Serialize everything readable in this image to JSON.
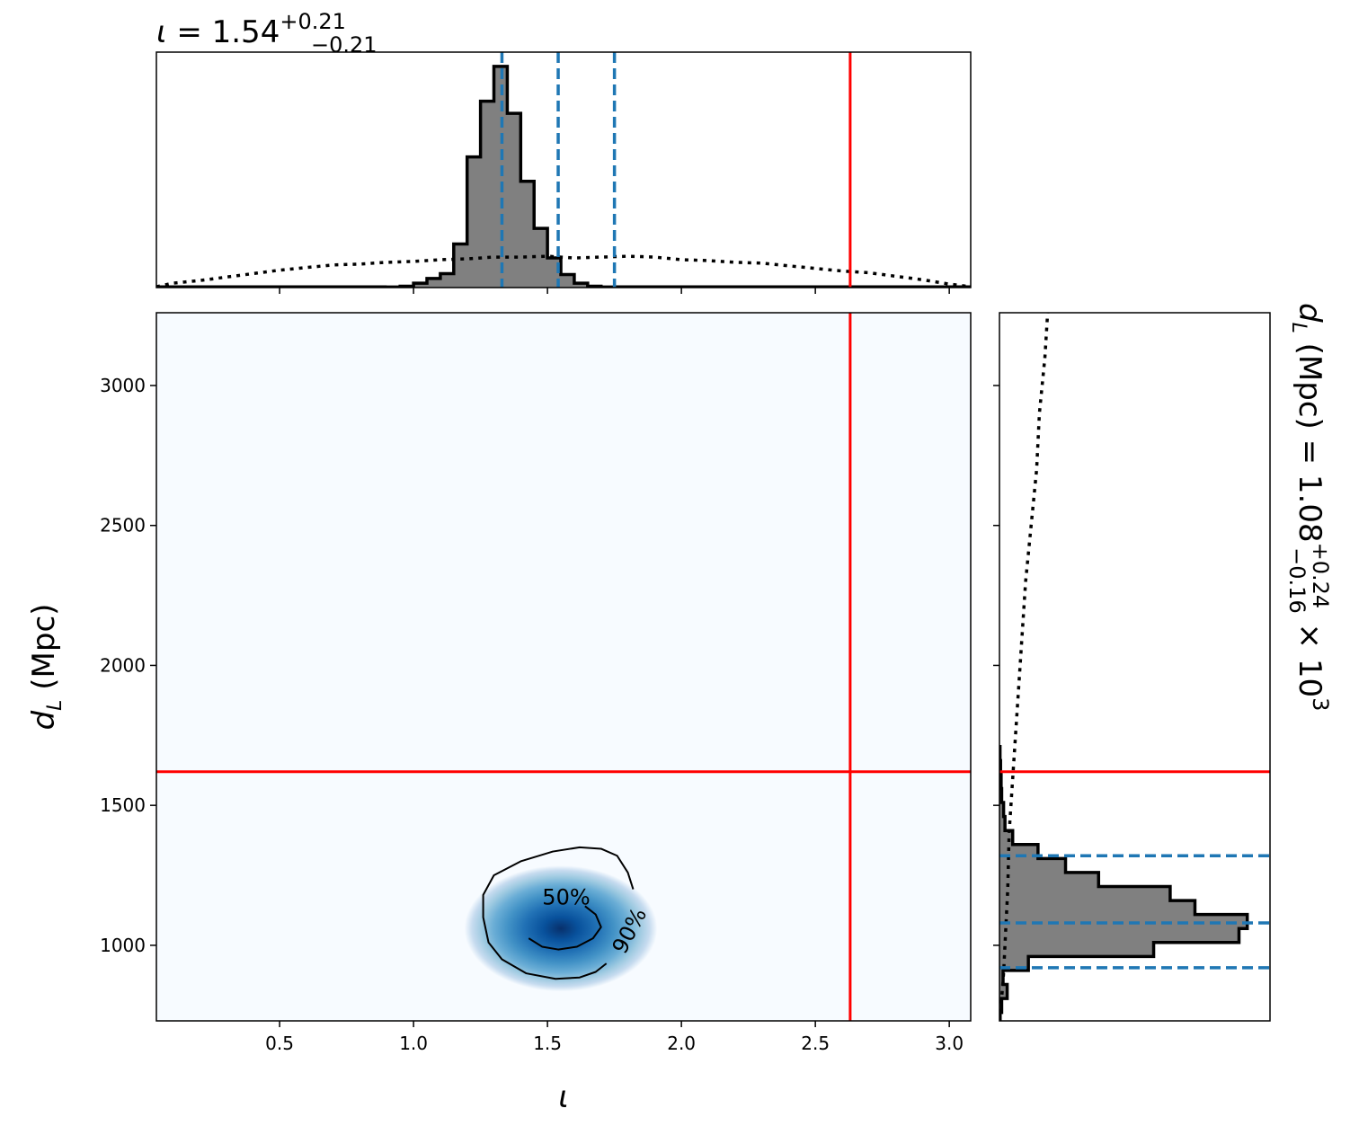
{
  "figure": {
    "type": "corner-plot",
    "top_title": {
      "param": "ι",
      "eq": " = 1.54",
      "plus": "+0.21",
      "minus": "−0.21"
    },
    "right_title": {
      "text": "d",
      "sub": "L",
      "rest": " (Mpc) = 1.08",
      "plus": "+0.24",
      "minus": "−0.16",
      "mult": " × 10",
      "exp": "3"
    },
    "xlabel": "ι",
    "ylabel": {
      "text": "d",
      "sub": "L",
      "rest": " (Mpc)"
    },
    "colors": {
      "truth": "#ff0000",
      "quantile": "#1f77b4",
      "hist_fill": "#808080",
      "hist_edge": "#000000",
      "prior": "#000000",
      "density_peak": "#08509b",
      "density_background": "#f7fbff"
    }
  },
  "chart_data": [
    {
      "panel": "top-marginal",
      "type": "histogram",
      "param": "ι",
      "xlim": [
        0.04,
        3.08
      ],
      "xticks": [
        0.5,
        1.0,
        1.5,
        2.0,
        2.5,
        3.0
      ],
      "bin_width": 0.05,
      "bins_start": 0.9,
      "counts": [
        0.3,
        0.8,
        2.5,
        5.2,
        8,
        25,
        75,
        107,
        127,
        100,
        61,
        34,
        17,
        7.5,
        2.5,
        0.8,
        0.3
      ],
      "count_max": 130,
      "quantiles": [
        1.33,
        1.54,
        1.75
      ],
      "truth": 2.63,
      "prior_curve": [
        [
          0.04,
          0.5
        ],
        [
          0.1,
          2.5
        ],
        [
          0.2,
          4
        ],
        [
          0.3,
          6
        ],
        [
          0.4,
          8
        ],
        [
          0.5,
          10
        ],
        [
          0.6,
          11.5
        ],
        [
          0.7,
          13
        ],
        [
          0.8,
          13.5
        ],
        [
          0.9,
          14.5
        ],
        [
          1.0,
          15
        ],
        [
          1.1,
          16
        ],
        [
          1.2,
          16.5
        ],
        [
          1.3,
          17.5
        ],
        [
          1.4,
          17.5
        ],
        [
          1.5,
          18
        ],
        [
          1.6,
          17
        ],
        [
          1.7,
          17.5
        ],
        [
          1.8,
          18
        ],
        [
          1.9,
          17.5
        ],
        [
          2.0,
          16
        ],
        [
          2.1,
          15.5
        ],
        [
          2.2,
          14.5
        ],
        [
          2.3,
          14
        ],
        [
          2.4,
          12.5
        ],
        [
          2.5,
          11
        ],
        [
          2.6,
          9.5
        ],
        [
          2.7,
          8.5
        ],
        [
          2.8,
          6.5
        ],
        [
          2.9,
          4.5
        ],
        [
          3.0,
          2
        ],
        [
          3.08,
          0.5
        ]
      ]
    },
    {
      "panel": "joint",
      "type": "heatmap",
      "xlabel": "ι",
      "ylabel": "d_L (Mpc)",
      "xlim": [
        0.04,
        3.08
      ],
      "ylim": [
        730,
        3260
      ],
      "xticks": [
        0.5,
        1.0,
        1.5,
        2.0,
        2.5,
        3.0
      ],
      "yticks": [
        1000,
        1500,
        2000,
        2500,
        3000
      ],
      "density_center": [
        1.55,
        1060
      ],
      "density_sigma": [
        0.12,
        75
      ],
      "truth": [
        2.63,
        1620
      ],
      "contours": [
        {
          "label": "50%",
          "points": [
            [
              1.43,
              1025
            ],
            [
              1.48,
              995
            ],
            [
              1.54,
              985
            ],
            [
              1.61,
              995
            ],
            [
              1.67,
              1025
            ],
            [
              1.7,
              1065
            ],
            [
              1.68,
              1110
            ],
            [
              1.64,
              1140
            ]
          ]
        },
        {
          "label": "90%",
          "points": [
            [
              1.82,
              1200
            ],
            [
              1.8,
              1260
            ],
            [
              1.76,
              1320
            ],
            [
              1.7,
              1345
            ],
            [
              1.62,
              1350
            ],
            [
              1.52,
              1335
            ],
            [
              1.4,
              1300
            ],
            [
              1.3,
              1250
            ],
            [
              1.26,
              1180
            ],
            [
              1.26,
              1100
            ],
            [
              1.28,
              1010
            ],
            [
              1.33,
              950
            ],
            [
              1.42,
              900
            ],
            [
              1.53,
              880
            ],
            [
              1.62,
              885
            ],
            [
              1.68,
              905
            ],
            [
              1.72,
              935
            ]
          ]
        }
      ]
    },
    {
      "panel": "right-marginal",
      "type": "histogram",
      "orientation": "horizontal",
      "param": "d_L (Mpc)",
      "ylim": [
        730,
        3260
      ],
      "yticks": [
        1000,
        1500,
        2000,
        2500,
        3000
      ],
      "bin_start": 760,
      "bin_width": 50,
      "counts": [
        0.8,
        2.8,
        1.3,
        10.5,
        56,
        87,
        90,
        71,
        62,
        36,
        24,
        14,
        4.8,
        2,
        1.5,
        0.8,
        0.6,
        0.4,
        0.2
      ],
      "count_max": 95,
      "quantiles": [
        920,
        1080,
        1320
      ],
      "truth": 1620,
      "prior_curve": [
        [
          0.4,
          760
        ],
        [
          1.5,
          900
        ],
        [
          3,
          1200
        ],
        [
          3.5,
          1400
        ],
        [
          4.5,
          1550
        ],
        [
          5.5,
          1700
        ],
        [
          6.5,
          1850
        ],
        [
          7.5,
          2000
        ],
        [
          8.5,
          2150
        ],
        [
          9.5,
          2300
        ],
        [
          11.5,
          2500
        ],
        [
          13.5,
          2700
        ],
        [
          14.5,
          2900
        ],
        [
          16.5,
          3100
        ],
        [
          17.5,
          3260
        ]
      ]
    }
  ]
}
